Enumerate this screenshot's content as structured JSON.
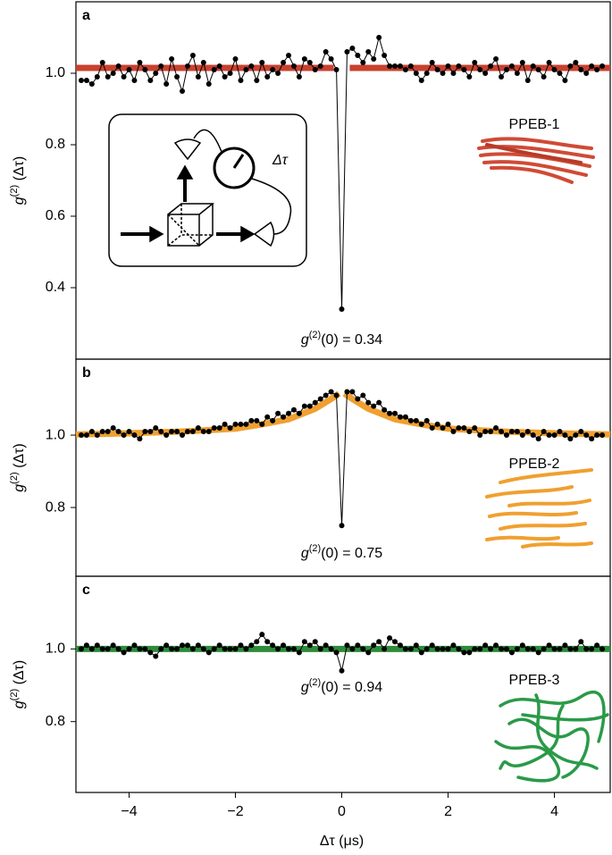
{
  "chart_data": [
    {
      "type": "line",
      "panel_label": "a",
      "ylabel": [
        "g",
        "(2)",
        " (Δτ)"
      ],
      "annotation": [
        "g",
        "(2)",
        "(0) = 0.34"
      ],
      "molecule_label": "PPEB-1",
      "molecule_color": "#d04a35",
      "inset_label": "Δτ",
      "xlim": [
        -5,
        5.05
      ],
      "ylim": [
        0.2,
        1.2
      ],
      "yticks": [
        0.4,
        0.6,
        0.8,
        {
          "value": 1,
          "label": "1.0"
        }
      ],
      "x": [
        -4.9,
        -4.8,
        -4.7,
        -4.6,
        -4.5,
        -4.4,
        -4.3,
        -4.2,
        -4.1,
        -4.0,
        -3.9,
        -3.8,
        -3.7,
        -3.6,
        -3.5,
        -3.4,
        -3.3,
        -3.2,
        -3.1,
        -3.0,
        -2.9,
        -2.8,
        -2.7,
        -2.6,
        -2.5,
        -2.4,
        -2.3,
        -2.2,
        -2.1,
        -2.0,
        -1.9,
        -1.8,
        -1.7,
        -1.6,
        -1.5,
        -1.4,
        -1.3,
        -1.2,
        -1.1,
        -1.0,
        -0.9,
        -0.8,
        -0.7,
        -0.6,
        -0.5,
        -0.4,
        -0.3,
        -0.2,
        -0.1,
        0,
        0.1,
        0.2,
        0.3,
        0.4,
        0.5,
        0.6,
        0.7,
        0.8,
        0.9,
        1.0,
        1.1,
        1.2,
        1.3,
        1.4,
        1.5,
        1.6,
        1.7,
        1.8,
        1.9,
        2.0,
        2.1,
        2.2,
        2.3,
        2.4,
        2.5,
        2.6,
        2.7,
        2.8,
        2.9,
        3.0,
        3.1,
        3.2,
        3.3,
        3.4,
        3.5,
        3.6,
        3.7,
        3.8,
        3.9,
        4.0,
        4.1,
        4.2,
        4.3,
        4.4,
        4.5,
        4.6,
        4.7,
        4.8,
        4.9
      ],
      "series": [
        {
          "color": "#c8412f",
          "x": [
            -5,
            -0.15,
            0,
            0.15,
            5.05
          ],
          "values": [
            1.015,
            1.015,
            null,
            1.015,
            1.015
          ]
        },
        {
          "color": "#000000",
          "values": [
            0.98,
            0.98,
            0.97,
            0.99,
            1.03,
            0.99,
            1.0,
            1.02,
            0.99,
            1.01,
            0.98,
            1.03,
            1.01,
            0.98,
            1.0,
            1.02,
            0.97,
            1.04,
            0.99,
            0.95,
            1.02,
            1.05,
            0.99,
            1.03,
            0.97,
            1.01,
            1.02,
            0.99,
            1.0,
            1.04,
            0.98,
            1.01,
            1.02,
            0.98,
            1.03,
            0.99,
            1.01,
            1.0,
            1.03,
            1.05,
            1.02,
            0.99,
            1.04,
            1.03,
            1.01,
            1.02,
            1.06,
            1.04,
            1.01,
            0.34,
            1.06,
            1.07,
            1.05,
            1.03,
            1.06,
            1.04,
            1.1,
            1.05,
            1.02,
            1.02,
            1.02,
            1.01,
            1.02,
            1.0,
            0.98,
            1.0,
            1.03,
            1.01,
            1.0,
            1.02,
            1.0,
            1.02,
            1.01,
            0.99,
            1.03,
            1.01,
            1.0,
            1.02,
            1.04,
            0.99,
            1.01,
            1.02,
            1.0,
            1.03,
            0.98,
            1.02,
            1.01,
            0.99,
            1.03,
            1.01,
            1.0,
            0.98,
            1.02,
            1.03,
            1.01,
            1.0,
            1.02,
            1.01,
            1.02
          ]
        }
      ]
    },
    {
      "type": "line",
      "panel_label": "b",
      "ylabel": [
        "g",
        "(2)",
        " (Δτ)"
      ],
      "annotation": [
        "g",
        "(2)",
        "(0) = 0.75"
      ],
      "molecule_label": "PPEB-2",
      "molecule_color": "#f2a540",
      "xlim": [
        -5,
        5.05
      ],
      "ylim": [
        0.61,
        1.21
      ],
      "yticks": [
        0.8,
        {
          "value": 1,
          "label": "1.0"
        }
      ],
      "x": [
        -4.9,
        -4.8,
        -4.7,
        -4.6,
        -4.5,
        -4.4,
        -4.3,
        -4.2,
        -4.1,
        -4.0,
        -3.9,
        -3.8,
        -3.7,
        -3.6,
        -3.5,
        -3.4,
        -3.3,
        -3.2,
        -3.1,
        -3.0,
        -2.9,
        -2.8,
        -2.7,
        -2.6,
        -2.5,
        -2.4,
        -2.3,
        -2.2,
        -2.1,
        -2.0,
        -1.9,
        -1.8,
        -1.7,
        -1.6,
        -1.5,
        -1.4,
        -1.3,
        -1.2,
        -1.1,
        -1.0,
        -0.9,
        -0.8,
        -0.7,
        -0.6,
        -0.5,
        -0.4,
        -0.3,
        -0.2,
        -0.1,
        0,
        0.1,
        0.2,
        0.3,
        0.4,
        0.5,
        0.6,
        0.7,
        0.8,
        0.9,
        1.0,
        1.1,
        1.2,
        1.3,
        1.4,
        1.5,
        1.6,
        1.7,
        1.8,
        1.9,
        2.0,
        2.1,
        2.2,
        2.3,
        2.4,
        2.5,
        2.6,
        2.7,
        2.8,
        2.9,
        3.0,
        3.1,
        3.2,
        3.3,
        3.4,
        3.5,
        3.6,
        3.7,
        3.8,
        3.9,
        4.0,
        4.1,
        4.2,
        4.3,
        4.4,
        4.5,
        4.6,
        4.7,
        4.8,
        4.9
      ],
      "series": [
        {
          "color": "#f0a030",
          "x": [
            -5,
            -4,
            -3,
            -2,
            -1.5,
            -1,
            -0.5,
            -0.2,
            -0.05,
            0,
            0.05,
            0.2,
            0.5,
            1,
            1.5,
            2,
            3,
            4,
            5.05
          ],
          "values": [
            1.002,
            1.005,
            1.01,
            1.018,
            1.03,
            1.044,
            1.073,
            1.1,
            1.115,
            null,
            1.115,
            1.1,
            1.073,
            1.044,
            1.03,
            1.018,
            1.01,
            1.005,
            1.002
          ]
        },
        {
          "color": "#000000",
          "values": [
            1.0,
            1.0,
            1.01,
            1.0,
            1.01,
            1.01,
            1.02,
            1.01,
            1.0,
            1.01,
            1.0,
            0.99,
            1.01,
            1.01,
            1.02,
            1.01,
            1.0,
            1.01,
            1.01,
            1.0,
            1.01,
            1.01,
            1.02,
            1.01,
            1.01,
            1.02,
            1.02,
            1.03,
            1.02,
            1.03,
            1.03,
            1.03,
            1.04,
            1.04,
            1.03,
            1.05,
            1.04,
            1.06,
            1.05,
            1.06,
            1.07,
            1.06,
            1.08,
            1.08,
            1.09,
            1.1,
            1.11,
            1.12,
            1.11,
            0.75,
            1.12,
            1.12,
            1.1,
            1.11,
            1.09,
            1.08,
            1.09,
            1.07,
            1.06,
            1.06,
            1.05,
            1.05,
            1.04,
            1.04,
            1.03,
            1.04,
            1.02,
            1.03,
            1.02,
            1.03,
            1.01,
            1.02,
            1.02,
            1.01,
            1.02,
            1.0,
            1.01,
            1.01,
            1.02,
            1.01,
            1.0,
            1.01,
            1.01,
            1.0,
            1.01,
            1.0,
            0.99,
            1.01,
            1.0,
            1.0,
            1.01,
            1.0,
            0.99,
            1.0,
            1.01,
            1.0,
            0.99,
            1.0,
            1.0
          ]
        }
      ]
    },
    {
      "type": "line",
      "panel_label": "c",
      "ylabel": [
        "g",
        "(2)",
        " (Δτ)"
      ],
      "annotation": [
        "g",
        "(2)",
        "(0) = 0.94"
      ],
      "molecule_label": "PPEB-3",
      "molecule_color": "#2a9a48",
      "xlabel": "Δτ (μs)",
      "xlim": [
        -5,
        5.05
      ],
      "ylim": [
        0.605,
        1.2
      ],
      "yticks": [
        0.8,
        {
          "value": 1,
          "label": "1.0"
        }
      ],
      "xticks": [
        {
          "value": -4,
          "label": "−4"
        },
        {
          "value": -2,
          "label": "−2"
        },
        0,
        2,
        4
      ],
      "x": [
        -4.9,
        -4.8,
        -4.7,
        -4.6,
        -4.5,
        -4.4,
        -4.3,
        -4.2,
        -4.1,
        -4.0,
        -3.9,
        -3.8,
        -3.7,
        -3.6,
        -3.5,
        -3.4,
        -3.3,
        -3.2,
        -3.1,
        -3.0,
        -2.9,
        -2.8,
        -2.7,
        -2.6,
        -2.5,
        -2.4,
        -2.3,
        -2.2,
        -2.1,
        -2.0,
        -1.9,
        -1.8,
        -1.7,
        -1.6,
        -1.5,
        -1.4,
        -1.3,
        -1.2,
        -1.1,
        -1.0,
        -0.9,
        -0.8,
        -0.7,
        -0.6,
        -0.5,
        -0.4,
        -0.3,
        -0.2,
        -0.1,
        0,
        0.1,
        0.2,
        0.3,
        0.4,
        0.5,
        0.6,
        0.7,
        0.8,
        0.9,
        1.0,
        1.1,
        1.2,
        1.3,
        1.4,
        1.5,
        1.6,
        1.7,
        1.8,
        1.9,
        2.0,
        2.1,
        2.2,
        2.3,
        2.4,
        2.5,
        2.6,
        2.7,
        2.8,
        2.9,
        3.0,
        3.1,
        3.2,
        3.3,
        3.4,
        3.5,
        3.6,
        3.7,
        3.8,
        3.9,
        4.0,
        4.1,
        4.2,
        4.3,
        4.4,
        4.5,
        4.6,
        4.7,
        4.8,
        4.9
      ],
      "series": [
        {
          "color": "#2e8b3a",
          "x": [
            -5,
            5.05
          ],
          "values": [
            1.0,
            1.0
          ]
        },
        {
          "color": "#000000",
          "values": [
            1.0,
            1.01,
            1.0,
            1.01,
            1.0,
            1.0,
            1.01,
            1.0,
            0.99,
            1.0,
            1.01,
            1.0,
            1.0,
            0.99,
            0.98,
            1.0,
            1.01,
            1.0,
            1.0,
            1.01,
            1.01,
            1.0,
            1.01,
            1.0,
            0.99,
            1.0,
            1.01,
            1.0,
            1.0,
            1.0,
            1.01,
            1.0,
            1.01,
            1.02,
            1.04,
            1.02,
            1.01,
            1.0,
            1.01,
            1.0,
            1.0,
            0.99,
            1.02,
            1.01,
            1.02,
            1.0,
            1.01,
            1.0,
            0.99,
            0.94,
            1.01,
            1.0,
            1.01,
            1.0,
            0.99,
            1.01,
            1.02,
            1.0,
            1.03,
            1.02,
            1.01,
            1.0,
            1.0,
            1.01,
            0.99,
            1.0,
            1.01,
            1.0,
            1.0,
            1.0,
            1.01,
            1.0,
            0.99,
            0.99,
            1.0,
            1.0,
            1.01,
            1.0,
            1.01,
            1.0,
            1.0,
            0.99,
            1.0,
            1.01,
            1.0,
            1.0,
            0.99,
            1.0,
            1.01,
            1.0,
            1.0,
            1.01,
            1.0,
            1.0,
            1.02,
            1.0,
            1.0,
            1.01,
            1.0
          ]
        }
      ]
    }
  ]
}
